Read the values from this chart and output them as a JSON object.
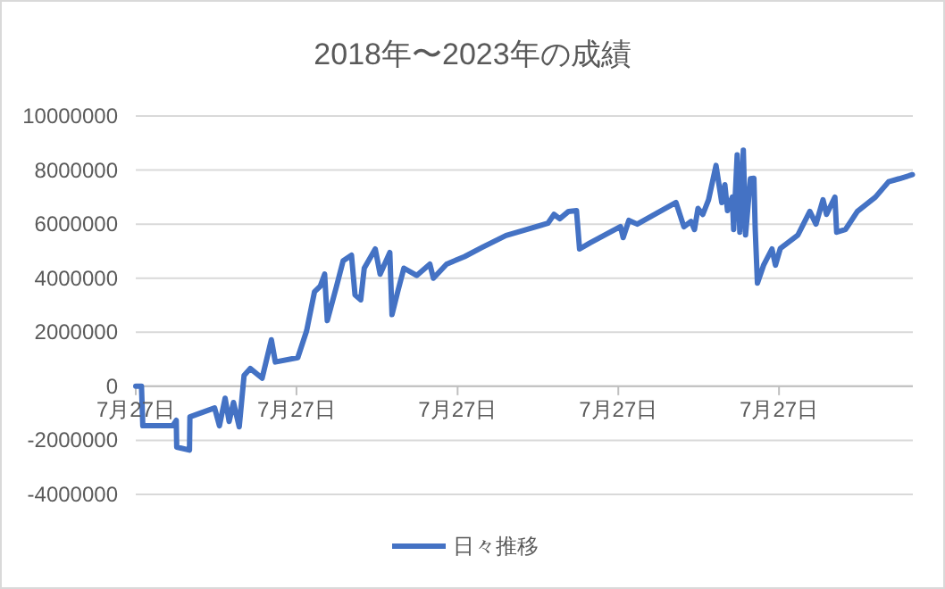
{
  "chart_data": {
    "type": "line",
    "title": "2018年〜2023年の成績",
    "x": [
      "2018-07-27",
      "2018-08-09",
      "2018-08-12",
      "2018-10-19",
      "2018-10-27",
      "2018-10-28",
      "2018-11-26",
      "2018-11-27",
      "2019-01-22",
      "2019-02-02",
      "2019-02-15",
      "2019-02-24",
      "2019-03-06",
      "2019-03-19",
      "2019-03-30",
      "2019-04-13",
      "2019-05-10",
      "2019-05-31",
      "2019-06-09",
      "2019-07-30",
      "2019-08-19",
      "2019-09-06",
      "2019-09-19",
      "2019-09-29",
      "2019-10-05",
      "2019-10-26",
      "2019-11-10",
      "2019-11-29",
      "2019-12-07",
      "2019-12-20",
      "2019-12-28",
      "2020-01-22",
      "2020-02-02",
      "2020-02-24",
      "2020-02-29",
      "2020-03-13",
      "2020-03-27",
      "2020-04-25",
      "2020-05-25",
      "2020-06-02",
      "2020-07-02",
      "2020-08-12",
      "2020-09-21",
      "2020-11-14",
      "2021-02-17",
      "2021-03-03",
      "2021-03-16",
      "2021-04-05",
      "2021-04-23",
      "2021-04-30",
      "2021-05-23",
      "2021-08-01",
      "2021-08-07",
      "2021-08-20",
      "2021-09-08",
      "2021-12-05",
      "2021-12-23",
      "2022-01-08",
      "2022-01-16",
      "2022-01-24",
      "2022-02-04",
      "2022-02-17",
      "2022-03-06",
      "2022-03-19",
      "2022-03-26",
      "2022-04-01",
      "2022-04-12",
      "2022-04-15",
      "2022-04-23",
      "2022-04-29",
      "2022-05-07",
      "2022-05-12",
      "2022-05-23",
      "2022-05-31",
      "2022-06-03",
      "2022-06-08",
      "2022-06-22",
      "2022-07-11",
      "2022-07-19",
      "2022-07-30",
      "2022-09-08",
      "2022-10-05",
      "2022-10-19",
      "2022-11-04",
      "2022-11-12",
      "2022-12-01",
      "2022-12-05",
      "2022-12-25",
      "2023-01-21",
      "2023-03-03",
      "2023-04-02",
      "2023-04-26",
      "2023-05-26"
    ],
    "series": [
      {
        "name": "日々推移",
        "color": "#4472c4",
        "values": [
          0,
          0,
          -1460000,
          -1460000,
          -1260000,
          -2250000,
          -2360000,
          -1130000,
          -800000,
          -1460000,
          -440000,
          -1300000,
          -600000,
          -1500000,
          400000,
          660000,
          300000,
          1720000,
          900000,
          1060000,
          2050000,
          3500000,
          3700000,
          4150000,
          2430000,
          3700000,
          4640000,
          4850000,
          3380000,
          3200000,
          4370000,
          5080000,
          4150000,
          4950000,
          2650000,
          3500000,
          4370000,
          4100000,
          4520000,
          4000000,
          4520000,
          4800000,
          5140000,
          5580000,
          6030000,
          6360000,
          6200000,
          6470000,
          6500000,
          5080000,
          5300000,
          5910000,
          5500000,
          6140000,
          6000000,
          6800000,
          5900000,
          6100000,
          5800000,
          6580000,
          6360000,
          6900000,
          8170000,
          6800000,
          7460000,
          6500000,
          7000000,
          5800000,
          8560000,
          5700000,
          8740000,
          5600000,
          7680000,
          7700000,
          5800000,
          3820000,
          4480000,
          5080000,
          4480000,
          5100000,
          5600000,
          6470000,
          6000000,
          6900000,
          6360000,
          7000000,
          5700000,
          5800000,
          6470000,
          7000000,
          7570000,
          7680000,
          7830000
        ]
      }
    ],
    "xlim": [
      "2018-07-27",
      "2023-05-27"
    ],
    "xticks": [
      {
        "value": "2018-07-27",
        "label": "7月27日"
      },
      {
        "value": "2019-07-27",
        "label": "7月27日"
      },
      {
        "value": "2020-07-27",
        "label": "7月27日"
      },
      {
        "value": "2021-07-27",
        "label": "7月27日"
      },
      {
        "value": "2022-07-27",
        "label": "7月27日"
      }
    ],
    "ylim": [
      -4000000,
      10000000
    ],
    "yticks": [
      -4000000,
      -2000000,
      0,
      2000000,
      4000000,
      6000000,
      8000000,
      10000000
    ],
    "grid": "y",
    "legend": "bottom",
    "marker": "none",
    "line_style": "solid"
  }
}
